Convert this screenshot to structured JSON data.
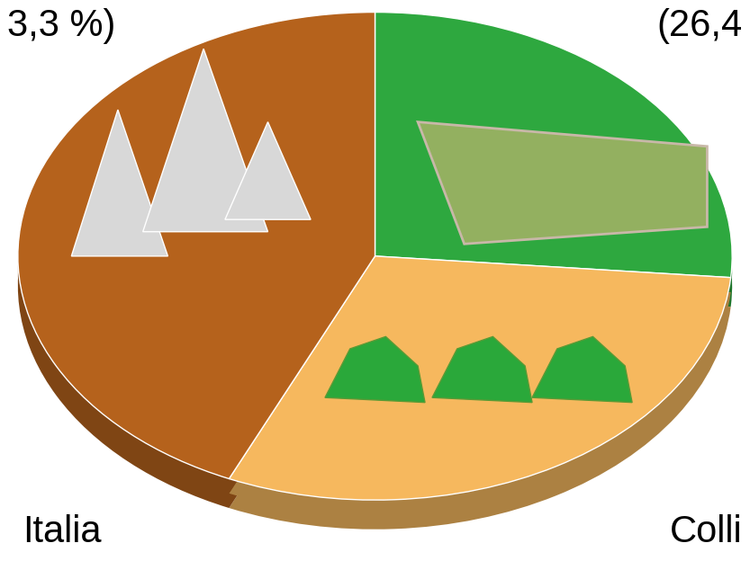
{
  "chart_data": {
    "type": "pie",
    "values": [
      26.4,
      30.3,
      43.3
    ],
    "colors": [
      "#2ea83f",
      "#f6b85e",
      "#b5621c"
    ],
    "annotations": [
      "3,3 %)",
      "(26,4",
      "Italia",
      "Colli"
    ]
  }
}
